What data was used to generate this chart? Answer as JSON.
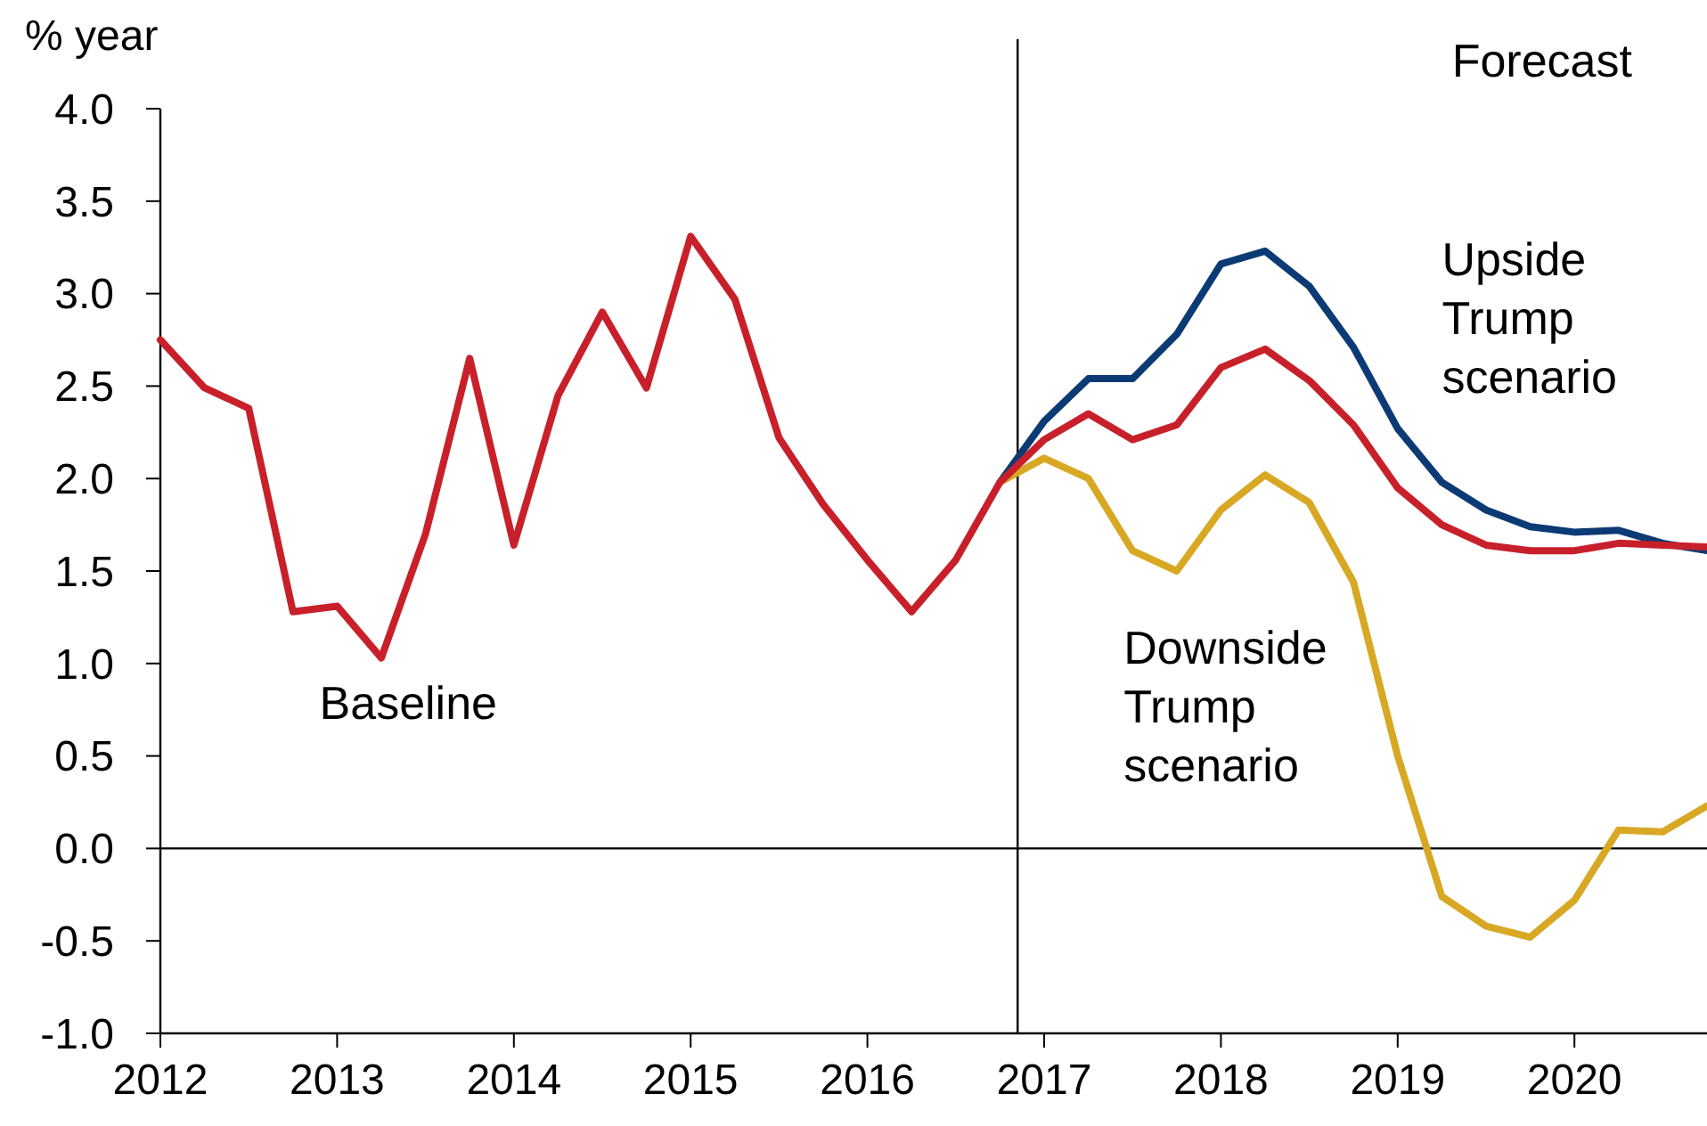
{
  "chart_data": {
    "type": "line",
    "ylabel": "% year",
    "xlim": [
      2012,
      2020.75
    ],
    "xticks": [
      2012,
      2013,
      2014,
      2015,
      2016,
      2017,
      2018,
      2019,
      2020
    ],
    "ylim": [
      -1,
      4
    ],
    "yticks": [
      {
        "value": -1,
        "label": "-1.0"
      },
      {
        "value": -0.5,
        "label": "-0.5"
      },
      {
        "value": 0,
        "label": "0.0"
      },
      {
        "value": 0.5,
        "label": "0.5"
      },
      {
        "value": 1,
        "label": "1.0"
      },
      {
        "value": 1.5,
        "label": "1.5"
      },
      {
        "value": 2,
        "label": "2.0"
      },
      {
        "value": 2.5,
        "label": "2.5"
      },
      {
        "value": 3,
        "label": "3.0"
      },
      {
        "value": 3.5,
        "label": "3.5"
      },
      {
        "value": 4,
        "label": "4.0"
      }
    ],
    "grid": false,
    "marker": "none",
    "line_style": "solid",
    "ref_lines": [
      {
        "axis": "y",
        "value": 0,
        "color": "#000000"
      },
      {
        "axis": "x",
        "value": 2016.85,
        "color": "#000000"
      }
    ],
    "annotations": [
      "Forecast"
    ],
    "series": [
      {
        "name": "Upside Trump scenario",
        "color": "#0c3a74",
        "x": [
          2016.75,
          2017,
          2017.25,
          2017.5,
          2017.75,
          2018,
          2018.25,
          2018.5,
          2018.75,
          2019,
          2019.25,
          2019.5,
          2019.75,
          2020,
          2020.25,
          2020.5,
          2020.75
        ],
        "values": [
          1.98,
          2.31,
          2.54,
          2.54,
          2.78,
          3.16,
          3.23,
          3.04,
          2.71,
          2.27,
          1.98,
          1.83,
          1.74,
          1.71,
          1.72,
          1.65,
          1.61
        ]
      },
      {
        "name": "Downside Trump scenario",
        "color": "#d8a824",
        "x": [
          2016.75,
          2017,
          2017.25,
          2017.5,
          2017.75,
          2018,
          2018.25,
          2018.5,
          2018.75,
          2019,
          2019.25,
          2019.5,
          2019.75,
          2020,
          2020.25,
          2020.5,
          2020.75
        ],
        "values": [
          1.98,
          2.11,
          2.0,
          1.61,
          1.5,
          1.83,
          2.02,
          1.87,
          1.44,
          0.5,
          -0.26,
          -0.42,
          -0.48,
          -0.28,
          0.1,
          0.09,
          0.23
        ]
      },
      {
        "name": "Baseline",
        "color": "#c8202a",
        "x": [
          2012,
          2012.25,
          2012.5,
          2012.75,
          2013,
          2013.25,
          2013.5,
          2013.75,
          2014,
          2014.25,
          2014.5,
          2014.75,
          2015,
          2015.25,
          2015.5,
          2015.75,
          2016,
          2016.25,
          2016.5,
          2016.75,
          2017,
          2017.25,
          2017.5,
          2017.75,
          2018,
          2018.25,
          2018.5,
          2018.75,
          2019,
          2019.25,
          2019.5,
          2019.75,
          2020,
          2020.25,
          2020.5,
          2020.75
        ],
        "values": [
          2.75,
          2.49,
          2.38,
          1.28,
          1.31,
          1.03,
          1.7,
          2.65,
          1.64,
          2.45,
          2.9,
          2.49,
          3.31,
          2.97,
          2.22,
          1.86,
          1.56,
          1.28,
          1.56,
          1.98,
          2.21,
          2.35,
          2.21,
          2.29,
          2.6,
          2.7,
          2.53,
          2.29,
          1.95,
          1.75,
          1.64,
          1.61,
          1.61,
          1.65,
          1.64,
          1.63
        ]
      }
    ]
  }
}
